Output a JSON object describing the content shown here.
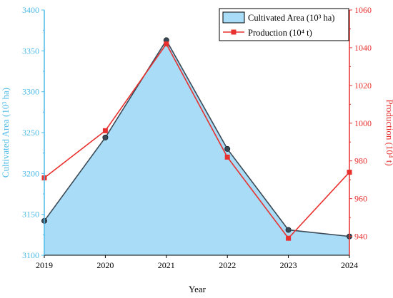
{
  "chart_data": {
    "type": "area",
    "xlabel": "Year",
    "x": [
      "2019",
      "2020",
      "2021",
      "2022",
      "2023",
      "2024"
    ],
    "series": [
      {
        "name": "Cultivated Area (10³ ha)",
        "axis": "left",
        "style": "area",
        "values": [
          3142,
          3244,
          3363,
          3230,
          3131,
          3123
        ]
      },
      {
        "name": "Production (10⁴ t)",
        "axis": "right",
        "style": "line",
        "values": [
          971,
          996,
          1042,
          982,
          939,
          974
        ]
      }
    ],
    "y_left": {
      "label": "Cultivated Area (10³ ha)",
      "ylim": [
        3100,
        3400
      ],
      "ticks": [
        "3100",
        "3150",
        "3200",
        "3250",
        "3300",
        "3350",
        "3400"
      ]
    },
    "y_right": {
      "label": "Production (10⁴ t)",
      "ylim": [
        930,
        1060
      ],
      "ticks": [
        "940",
        "960",
        "980",
        "1000",
        "1020",
        "1040",
        "1060"
      ]
    },
    "legend_position": "top-right",
    "grid": false
  },
  "colors": {
    "area_fill": "#a8dcf7",
    "area_line": "#3b4a56",
    "left_axis": "#4dbbe8",
    "right_axis": "#e8302e",
    "production": "#e8302e",
    "axis": "#000000"
  }
}
